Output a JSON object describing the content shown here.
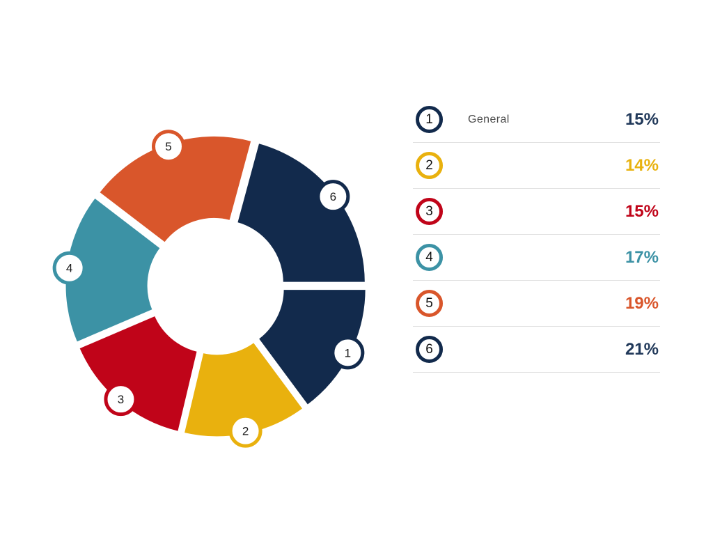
{
  "chart_data": {
    "type": "pie",
    "variant": "exploded-donut",
    "categories": [
      "1",
      "2",
      "3",
      "4",
      "5",
      "6"
    ],
    "values": [
      15,
      14,
      15,
      17,
      19,
      21
    ],
    "value_unit": "%",
    "segment_labels": [
      "General",
      "",
      "",
      "",
      "",
      ""
    ],
    "colors": [
      "#122a4c",
      "#e9b10e",
      "#c00419",
      "#3c92a5",
      "#d9562b",
      "#122a4c"
    ],
    "start_angle_deg": 90,
    "direction": "clockwise",
    "legend_position": "right",
    "hole": true,
    "gap_between_slices": true
  },
  "legend": {
    "items": [
      {
        "number": "1",
        "label": "General",
        "value": "15%",
        "color": "#122a4c",
        "value_color": "#21395a"
      },
      {
        "number": "2",
        "label": "",
        "value": "14%",
        "color": "#e9b10e",
        "value_color": "#e8b20f"
      },
      {
        "number": "3",
        "label": "",
        "value": "15%",
        "color": "#c00419",
        "value_color": "#c00419"
      },
      {
        "number": "4",
        "label": "",
        "value": "17%",
        "color": "#3c92a5",
        "value_color": "#3c92a5"
      },
      {
        "number": "5",
        "label": "",
        "value": "19%",
        "color": "#d9562b",
        "value_color": "#d9562b"
      },
      {
        "number": "6",
        "label": "",
        "value": "21%",
        "color": "#122a4c",
        "value_color": "#21395a"
      }
    ],
    "separator_color": "#e0e0e0",
    "label_color": "#4d4d4d"
  }
}
